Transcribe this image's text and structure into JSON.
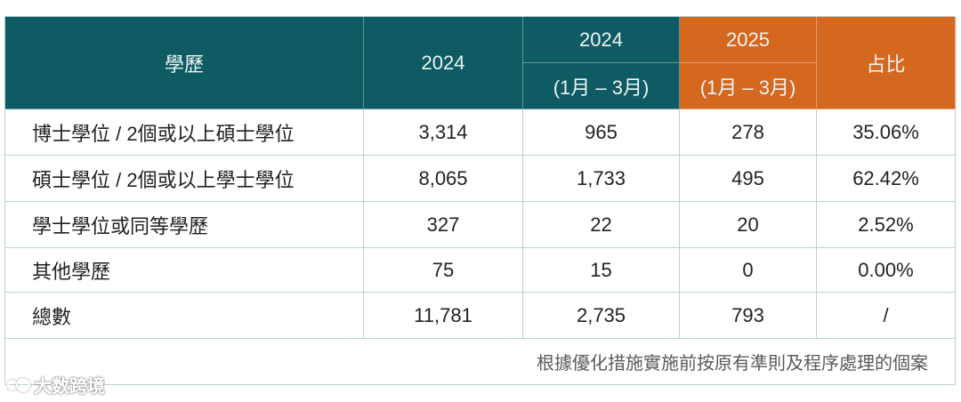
{
  "table": {
    "header": {
      "education": "學歷",
      "year_2024": "2024",
      "q1_2024": {
        "year": "2024",
        "period": "(1月 – 3月)"
      },
      "q1_2025": {
        "year": "2025",
        "period": "(1月 – 3月)"
      },
      "share": "占比"
    },
    "rows": [
      {
        "education": "博士學位 / 2個或以上碩士學位",
        "year_2024": "3,314",
        "q1_2024": "965",
        "q1_2025": "278",
        "share": "35.06%"
      },
      {
        "education": "碩士學位 / 2個或以上學士學位",
        "year_2024": "8,065",
        "q1_2024": "1,733",
        "q1_2025": "495",
        "share": "62.42%"
      },
      {
        "education": "學士學位或同等學歷",
        "year_2024": "327",
        "q1_2024": "22",
        "q1_2025": "20",
        "share": "2.52%"
      },
      {
        "education": "其他學歷",
        "year_2024": "75",
        "q1_2024": "15",
        "q1_2025": "0",
        "share": "0.00%"
      },
      {
        "education": "總數",
        "year_2024": "11,781",
        "q1_2024": "2,735",
        "q1_2025": "793",
        "share": "/"
      }
    ],
    "note": "根據優化措施實施前按原有準則及程序處理的個案"
  },
  "colors": {
    "header_teal": "#0e5b64",
    "header_orange": "#d4681f",
    "grid_line": "#b9d2d5"
  },
  "watermark": {
    "icon": "watermark-logo-icon",
    "text": "大数跨境"
  }
}
